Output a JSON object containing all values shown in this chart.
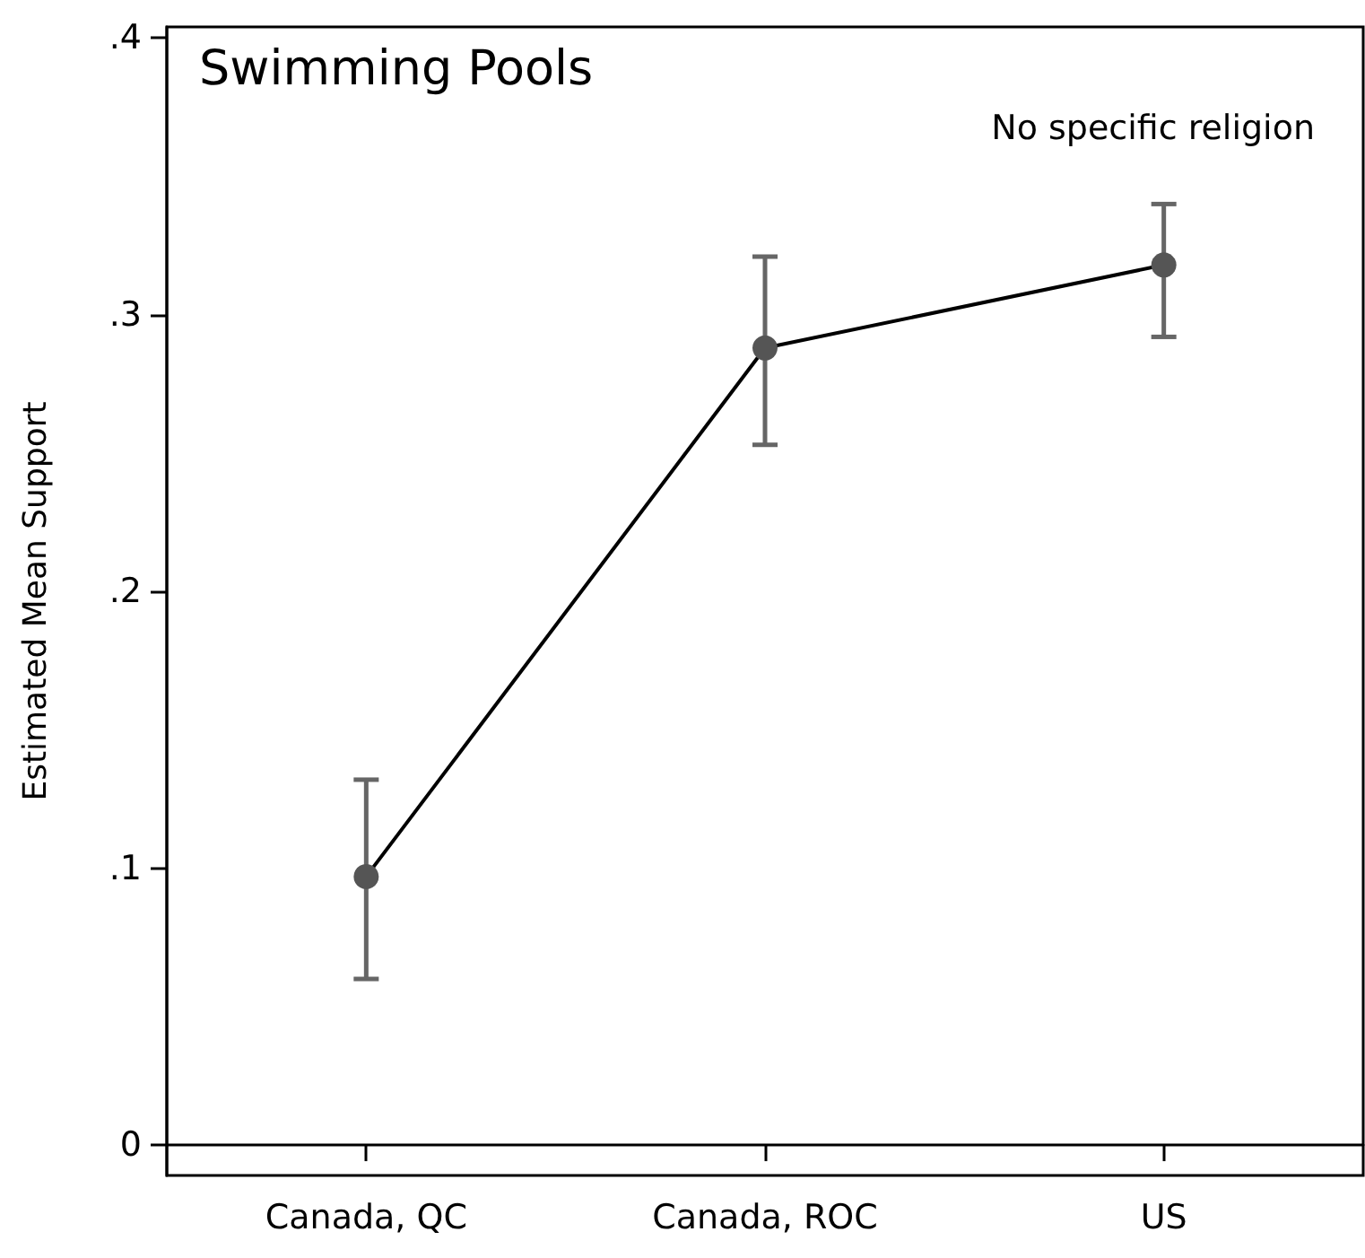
{
  "chart_data": {
    "type": "line",
    "title": "Swimming Pools",
    "ylabel": "Estimated Mean Support",
    "annotations": [
      "No specific religion"
    ],
    "categories": [
      "Canada, QC",
      "Canada, ROC",
      "US"
    ],
    "series": [
      {
        "color": "#000000",
        "colors": [
          "#555555",
          "#555555",
          "#555555"
        ],
        "values": [
          0.097,
          0.288,
          0.318
        ],
        "errors": [
          [
            0.06,
            0.132
          ],
          [
            0.253,
            0.321
          ],
          [
            0.292,
            0.34
          ]
        ]
      }
    ],
    "ylim": [
      -0.011,
      0.404
    ],
    "yticks": [
      0,
      {
        "value": 0.1,
        "label": ".1"
      },
      {
        "value": 0.2,
        "label": ".2"
      },
      {
        "value": 0.3,
        "label": ".3"
      },
      {
        "value": 0.4,
        "label": ".4"
      }
    ],
    "marker": "circle",
    "line_style": "solid"
  }
}
